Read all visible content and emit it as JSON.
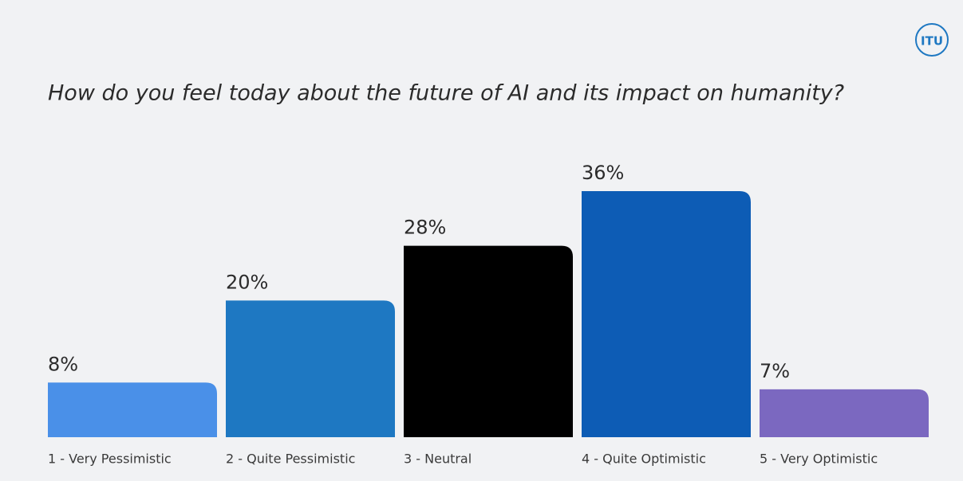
{
  "chart_data": {
    "type": "bar",
    "title": "How do you feel today about the future of AI and its impact on humanity?",
    "logo": "ITU",
    "categories": [
      "1 - Very Pessimistic",
      "2 - Quite Pessimistic",
      "3 - Neutral",
      "4 - Quite Optimistic",
      "5 - Very Optimistic"
    ],
    "values": [
      8,
      20,
      28,
      36,
      7
    ],
    "value_labels": [
      "8%",
      "20%",
      "28%",
      "36%",
      "7%"
    ],
    "colors": [
      "#4a90e8",
      "#1e78c2",
      "#000000",
      "#0d5cb5",
      "#7b68c0"
    ]
  }
}
